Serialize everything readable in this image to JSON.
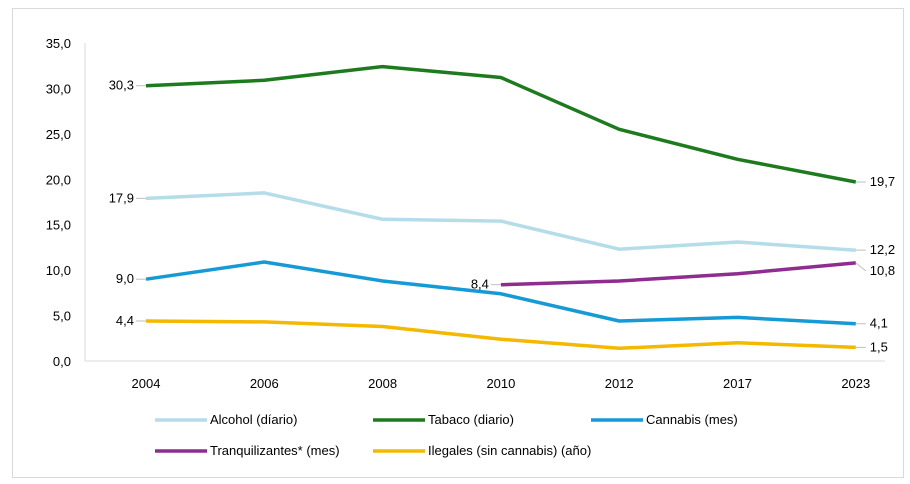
{
  "chart_data": {
    "type": "line",
    "title": "",
    "xlabel": "",
    "ylabel": "",
    "categories": [
      "2004",
      "2006",
      "2008",
      "2010",
      "2012",
      "2017",
      "2023"
    ],
    "y_ticks": [
      "0,0",
      "5,0",
      "10,0",
      "15,0",
      "20,0",
      "25,0",
      "30,0",
      "35,0"
    ],
    "ylim": [
      0,
      35
    ],
    "grid": false,
    "legend_position": "bottom",
    "series": [
      {
        "name": "Alcohol (díario)",
        "color": "#b4dde9",
        "values": [
          17.9,
          18.5,
          15.6,
          15.4,
          12.3,
          13.1,
          12.2
        ]
      },
      {
        "name": "Tabaco (diario)",
        "color": "#1e7a1e",
        "values": [
          30.3,
          30.9,
          32.4,
          31.2,
          25.5,
          22.2,
          19.7
        ]
      },
      {
        "name": "Cannabis (mes)",
        "color": "#169ad6",
        "values": [
          9.0,
          10.9,
          8.8,
          7.4,
          4.4,
          4.8,
          4.1
        ]
      },
      {
        "name": "Tranquilizantes* (mes)",
        "color": "#8e2c90",
        "values": [
          null,
          null,
          null,
          8.4,
          8.8,
          9.6,
          10.8
        ]
      },
      {
        "name": "Ilegales (sin cannabis) (año)",
        "color": "#f5b800",
        "values": [
          4.4,
          4.3,
          3.8,
          2.4,
          1.4,
          2.0,
          1.5
        ]
      }
    ],
    "annotations": [
      {
        "series": 0,
        "index": 0,
        "text": "17,9",
        "side": "left"
      },
      {
        "series": 1,
        "index": 0,
        "text": "30,3",
        "side": "left"
      },
      {
        "series": 2,
        "index": 0,
        "text": "9,0",
        "side": "left"
      },
      {
        "series": 4,
        "index": 0,
        "text": "4,4",
        "side": "left"
      },
      {
        "series": 3,
        "index": 3,
        "text": "8,4",
        "side": "left"
      },
      {
        "series": 1,
        "index": 6,
        "text": "19,7",
        "side": "right"
      },
      {
        "series": 0,
        "index": 6,
        "text": "12,2",
        "side": "right"
      },
      {
        "series": 3,
        "index": 6,
        "text": "10,8",
        "side": "right"
      },
      {
        "series": 2,
        "index": 6,
        "text": "4,1",
        "side": "right"
      },
      {
        "series": 4,
        "index": 6,
        "text": "1,5",
        "side": "right"
      }
    ]
  }
}
